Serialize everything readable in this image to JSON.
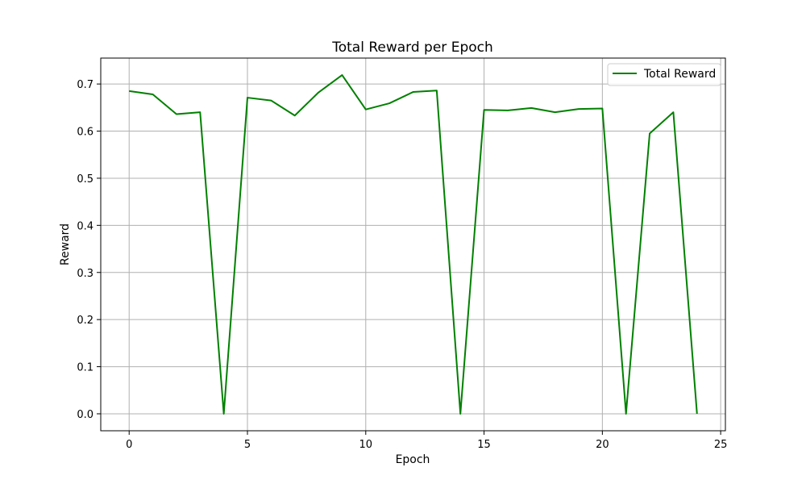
{
  "chart_data": {
    "type": "line",
    "title": "Total Reward per Epoch",
    "xlabel": "Epoch",
    "ylabel": "Reward",
    "xlim": [
      -1.2,
      25.2
    ],
    "ylim": [
      -0.036,
      0.755
    ],
    "xticks": [
      0,
      5,
      10,
      15,
      20,
      25
    ],
    "yticks": [
      0.0,
      0.1,
      0.2,
      0.3,
      0.4,
      0.5,
      0.6,
      0.7
    ],
    "xtick_labels": [
      "0",
      "5",
      "10",
      "15",
      "20",
      "25"
    ],
    "ytick_labels": [
      "0.0",
      "0.1",
      "0.2",
      "0.3",
      "0.4",
      "0.5",
      "0.6",
      "0.7"
    ],
    "grid": true,
    "legend_position": "top-right",
    "x": [
      0,
      1,
      2,
      3,
      4,
      5,
      6,
      7,
      8,
      9,
      10,
      11,
      12,
      13,
      14,
      15,
      16,
      17,
      18,
      19,
      20,
      21,
      22,
      23,
      24
    ],
    "series": [
      {
        "name": "Total Reward",
        "color": "#008000",
        "values": [
          0.685,
          0.678,
          0.636,
          0.64,
          0.0,
          0.671,
          0.665,
          0.633,
          0.682,
          0.719,
          0.646,
          0.659,
          0.683,
          0.686,
          0.0,
          0.645,
          0.644,
          0.649,
          0.64,
          0.647,
          0.648,
          0.0,
          0.595,
          0.64,
          0.0
        ]
      }
    ]
  }
}
